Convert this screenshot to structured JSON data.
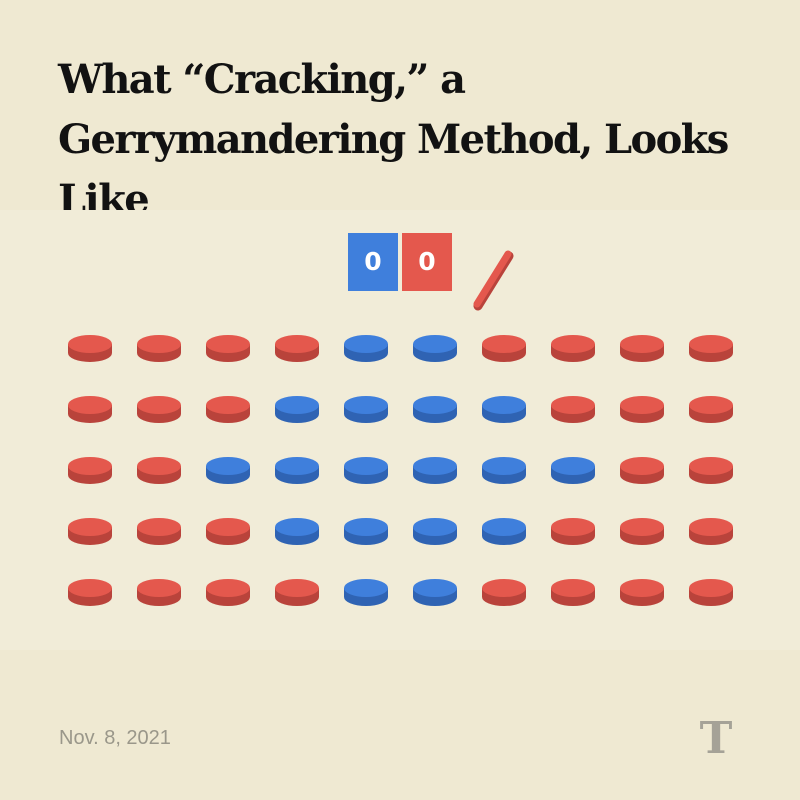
{
  "title": "What “Cracking,” a Gerrymandering Method, Looks Like",
  "date": "Nov. 8, 2021",
  "logo": "T",
  "icons": {
    "logo": "nyt-logo-icon",
    "pen": "pencil-stroke-icon"
  },
  "colors": {
    "background": "#efe9d2",
    "blue": "#3f7fdc",
    "blue_edge": "#2f63b3",
    "red": "#e4584d",
    "red_edge": "#b9433b",
    "muted_text": "#9a978a"
  },
  "scoreboard": {
    "blue_districts": "0",
    "red_districts": "0"
  },
  "grid": {
    "rows": [
      [
        "R",
        "R",
        "R",
        "R",
        "B",
        "B",
        "R",
        "R",
        "R",
        "R"
      ],
      [
        "R",
        "R",
        "R",
        "B",
        "B",
        "B",
        "B",
        "R",
        "R",
        "R"
      ],
      [
        "R",
        "R",
        "B",
        "B",
        "B",
        "B",
        "B",
        "B",
        "R",
        "R"
      ],
      [
        "R",
        "R",
        "R",
        "B",
        "B",
        "B",
        "B",
        "R",
        "R",
        "R"
      ],
      [
        "R",
        "R",
        "R",
        "R",
        "B",
        "B",
        "R",
        "R",
        "R",
        "R"
      ]
    ]
  }
}
